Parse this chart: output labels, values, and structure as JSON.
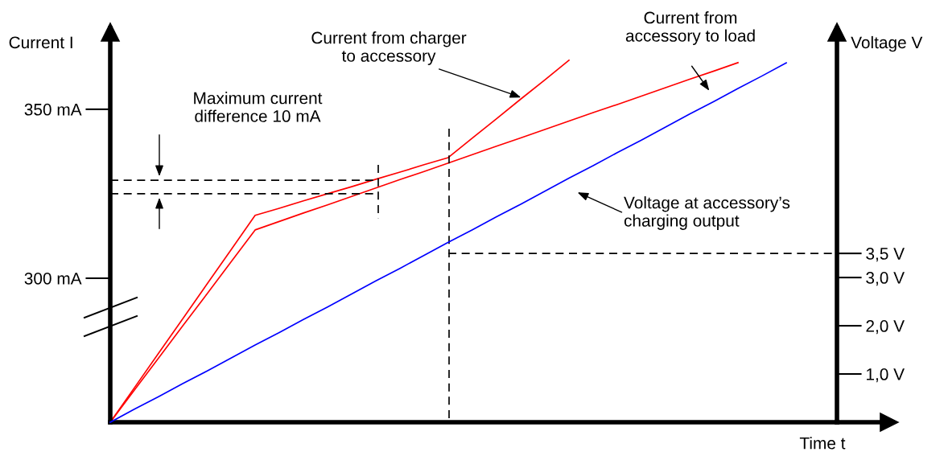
{
  "chart_data": {
    "type": "line",
    "xlabel": "Time t",
    "ylabel": "Current I",
    "y2label": "Voltage V",
    "categories": [
      null,
      null,
      null,
      null,
      null,
      null,
      null,
      null,
      null,
      null,
      null,
      null,
      null,
      null,
      null,
      null,
      null,
      null,
      null,
      null,
      null,
      null,
      null,
      null,
      null,
      null,
      null,
      null,
      null,
      null,
      null
    ],
    "ylim": [
      257.4,
      374
    ],
    "y2lim": [
      0,
      8.17
    ],
    "yticks": [
      {
        "value": 300,
        "label": "300 mA"
      },
      {
        "value": 350,
        "label": "350 mA"
      }
    ],
    "y2ticks": [
      {
        "value": 1,
        "label": "1,0 V"
      },
      {
        "value": 2,
        "label": "2,0 V"
      },
      {
        "value": 3,
        "label": "3,0 V"
      },
      {
        "value": 3.5,
        "label": "3,5 V"
      }
    ],
    "tick_labels": "y",
    "grid": false,
    "marker": "none",
    "series": [
      {
        "color": "#ff0000",
        "values": [
          257.4,
          267.6,
          277.8,
          288.0,
          298.2,
          308.4,
          318.6,
          320.7,
          322.9,
          325.0,
          327.1,
          329.3,
          331.4,
          333.6,
          335.7,
          341.5,
          347.2,
          353.0,
          358.7,
          364.5,
          null,
          null,
          null,
          null,
          null,
          null,
          null,
          null,
          null,
          null,
          null
        ]
      },
      {
        "color": "#ff0000",
        "values": [
          257.4,
          266.9,
          276.4,
          285.9,
          295.3,
          304.8,
          314.3,
          316.8,
          319.3,
          321.7,
          324.2,
          326.7,
          329.2,
          331.6,
          334.1,
          336.6,
          339.1,
          341.5,
          344.0,
          346.5,
          349.0,
          351.4,
          353.9,
          356.4,
          358.9,
          361.3,
          363.8,
          null,
          null,
          null,
          null
        ]
      },
      {
        "color": "#0000ff",
        "axis": "y2",
        "values": [
          0,
          0.27,
          0.53,
          0.8,
          1.06,
          1.33,
          1.6,
          1.86,
          2.13,
          2.39,
          2.66,
          2.93,
          3.19,
          3.46,
          3.73,
          3.99,
          4.26,
          4.52,
          4.79,
          5.06,
          5.32,
          5.59,
          5.85,
          6.12,
          6.39,
          6.65,
          6.92,
          7.18,
          7.45,
          null,
          null
        ]
      },
      {
        "color": "#000000",
        "line_style": "dashed",
        "values": [
          329.0,
          329.0,
          329.0,
          329.0,
          329.0,
          329.0,
          329.0,
          329.0,
          329.0,
          329.0,
          329.0,
          329.0,
          null,
          null,
          null,
          null,
          null,
          null,
          null,
          null,
          null,
          null,
          null,
          null,
          null,
          null,
          null,
          null,
          null,
          null,
          null
        ]
      },
      {
        "color": "#000000",
        "line_style": "dashed",
        "values": [
          325.0,
          325.0,
          325.0,
          325.0,
          325.0,
          325.0,
          325.0,
          325.0,
          325.0,
          325.0,
          325.0,
          325.0,
          null,
          null,
          null,
          null,
          null,
          null,
          null,
          null,
          null,
          null,
          null,
          null,
          null,
          null,
          null,
          null,
          null,
          null,
          null
        ]
      },
      {
        "color": "#000000",
        "line_style": "dashed",
        "axis": "y2",
        "values": [
          null,
          null,
          null,
          null,
          null,
          null,
          null,
          null,
          null,
          null,
          null,
          null,
          null,
          null,
          3.5,
          3.5,
          3.5,
          3.5,
          3.5,
          3.5,
          3.5,
          3.5,
          3.5,
          3.5,
          3.5,
          3.5,
          3.5,
          3.5,
          3.5,
          3.5,
          3.5
        ]
      }
    ],
    "annotations": [
      "Current from charger\nto accessory",
      "Current from\naccessory to load",
      "Voltage at accessory’s\ncharging output",
      "Maximum current\ndifference 10 mA"
    ]
  }
}
